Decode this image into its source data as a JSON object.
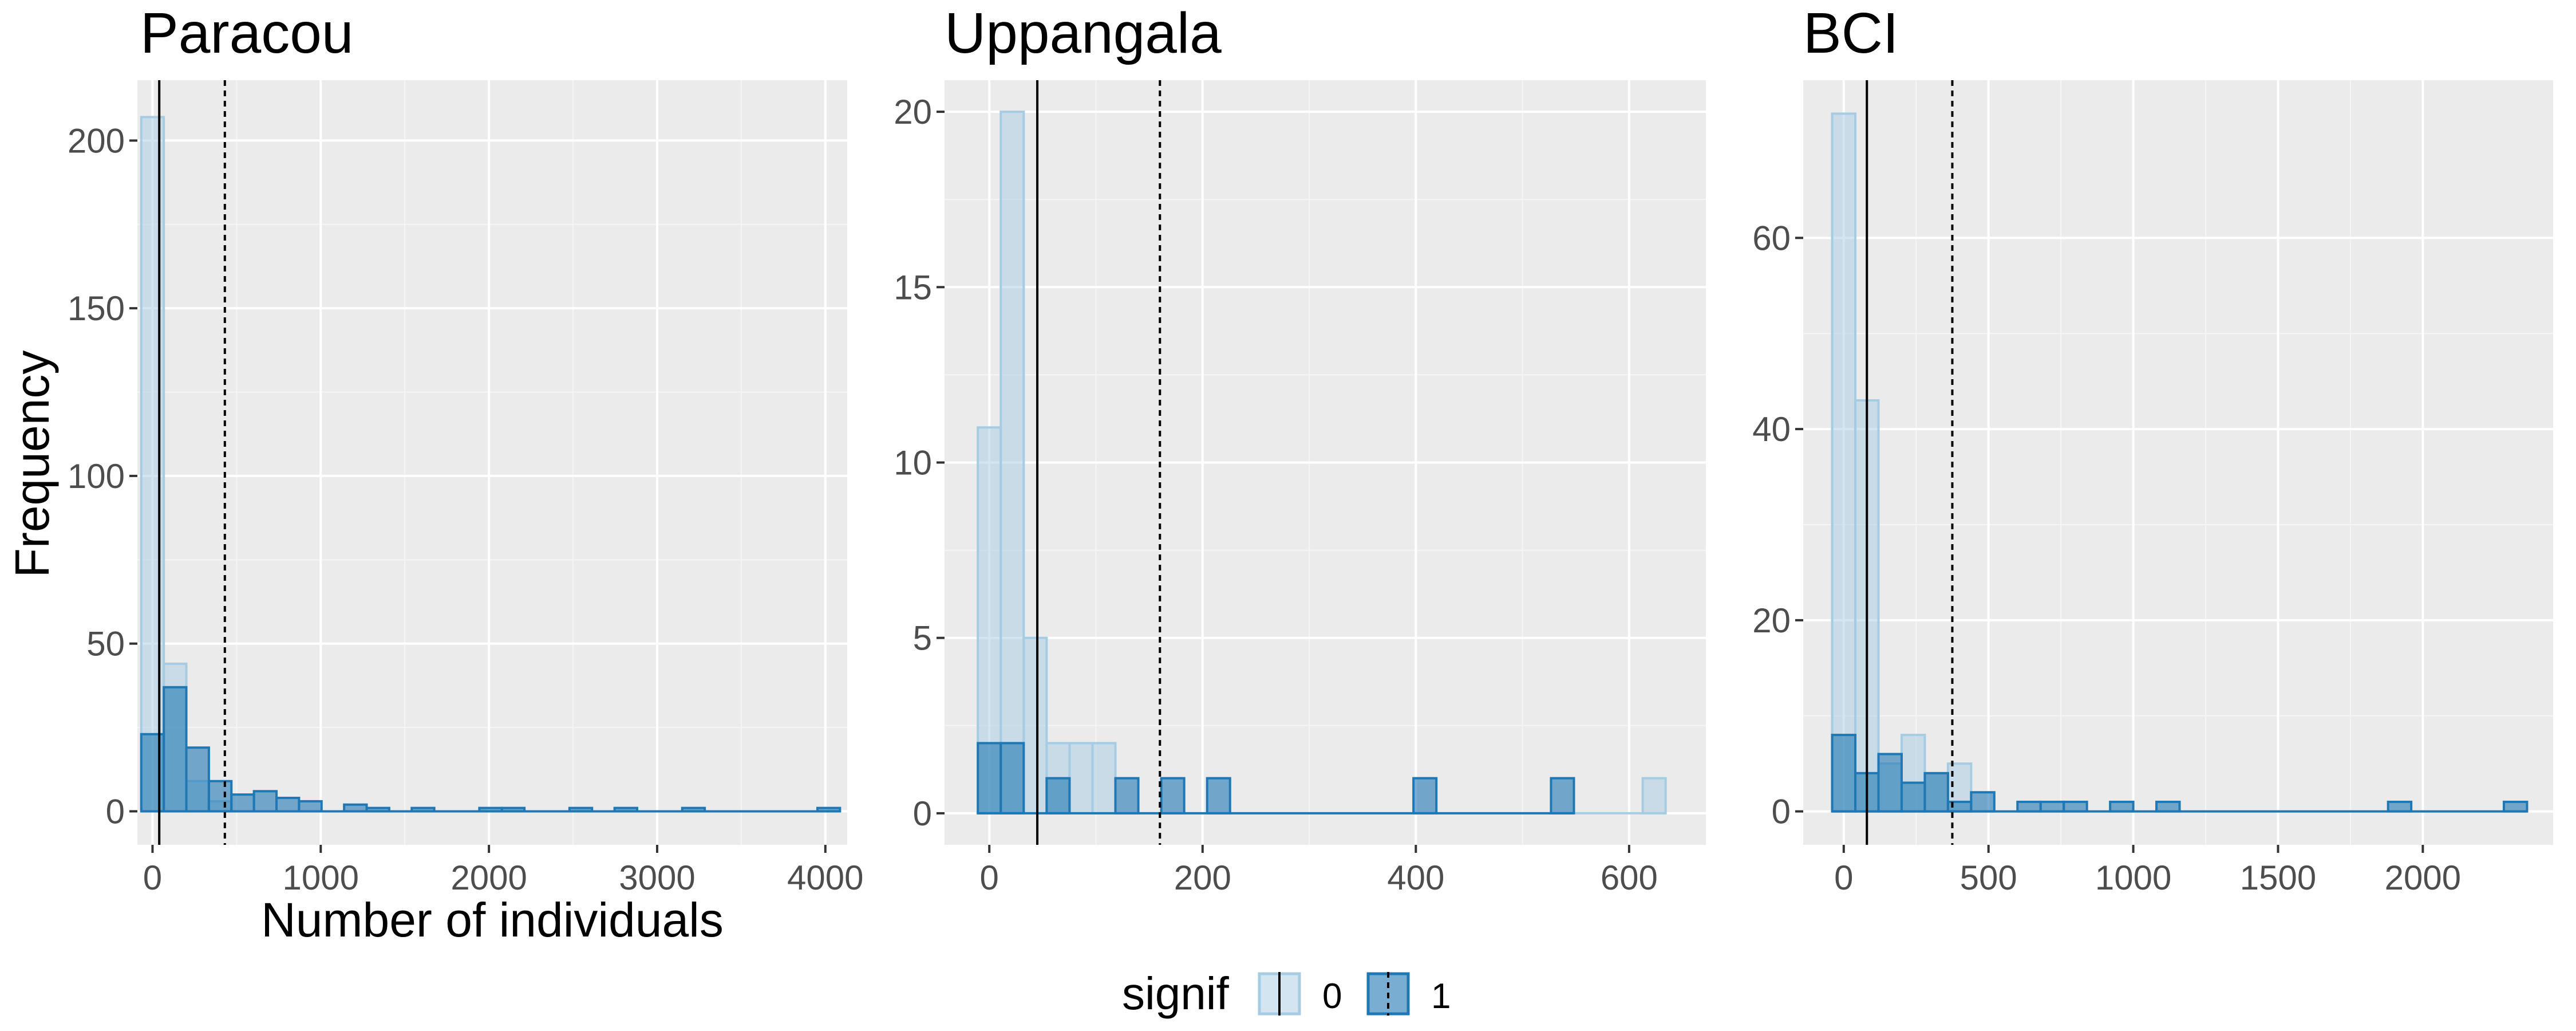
{
  "legend": {
    "title": "signif",
    "items": [
      {
        "label": "0",
        "fill": "#a6cce3",
        "stroke": "#a6cce3",
        "line": "solid"
      },
      {
        "label": "1",
        "fill": "#1f78b4",
        "stroke": "#1f78b4",
        "line": "dashed"
      }
    ]
  },
  "chart_data": [
    {
      "type": "bar",
      "title": "Paracou",
      "xlabel": "Number of individuals",
      "ylabel": "Frequency",
      "xlim": [
        -90,
        4130
      ],
      "ylim": [
        -10,
        218
      ],
      "xticks": [
        0,
        1000,
        2000,
        3000,
        4000
      ],
      "yticks": [
        0,
        50,
        100,
        150,
        200
      ],
      "bin_width": 134,
      "median_line": 40,
      "mean_line": 430,
      "series": [
        {
          "name": "0",
          "bin_centers": [
            0,
            134,
            268,
            402
          ],
          "values": [
            207,
            44,
            9,
            3
          ]
        },
        {
          "name": "1",
          "bin_centers": [
            0,
            134,
            268,
            402,
            536,
            670,
            804,
            938,
            1206,
            1340,
            1608,
            2010,
            2144,
            2546,
            2814,
            3216,
            4020
          ],
          "values": [
            23,
            37,
            19,
            9,
            5,
            6,
            4,
            3,
            2,
            1,
            1,
            1,
            1,
            1,
            1,
            1,
            1
          ]
        }
      ],
      "grid": true
    },
    {
      "type": "bar",
      "title": "Uppangala",
      "xlabel": "",
      "ylabel": "",
      "xlim": [
        -42,
        672
      ],
      "ylim": [
        -0.9,
        20.9
      ],
      "xticks": [
        0,
        200,
        400,
        600
      ],
      "yticks": [
        0,
        5,
        10,
        15,
        20
      ],
      "bin_width": 21.5,
      "median_line": 45,
      "mean_line": 160,
      "series": [
        {
          "name": "0",
          "bin_centers": [
            0,
            21.5,
            43,
            64.5,
            86,
            107.5,
            623.5
          ],
          "values": [
            11,
            20,
            5,
            2,
            2,
            2,
            1
          ]
        },
        {
          "name": "1",
          "bin_centers": [
            0,
            21.5,
            64.5,
            129,
            172,
            215,
            408.5,
            537.5
          ],
          "values": [
            2,
            2,
            1,
            1,
            1,
            1,
            1,
            1
          ]
        }
      ],
      "grid": true
    },
    {
      "type": "bar",
      "title": "BCI",
      "xlabel": "",
      "ylabel": "",
      "xlim": [
        -140,
        2450
      ],
      "ylim": [
        -3.5,
        76.5
      ],
      "xticks": [
        0,
        500,
        1000,
        1500,
        2000
      ],
      "yticks": [
        0,
        20,
        40,
        60
      ],
      "bin_width": 80,
      "median_line": 80,
      "mean_line": 375,
      "series": [
        {
          "name": "0",
          "bin_centers": [
            0,
            80,
            160,
            240,
            320,
            400
          ],
          "values": [
            73,
            43,
            5,
            8,
            4,
            5
          ]
        },
        {
          "name": "1",
          "bin_centers": [
            0,
            80,
            160,
            240,
            320,
            400,
            480,
            640,
            720,
            800,
            960,
            1120,
            1920,
            2320
          ],
          "values": [
            8,
            4,
            6,
            3,
            4,
            1,
            2,
            1,
            1,
            1,
            1,
            1,
            1,
            1
          ]
        }
      ],
      "grid": true
    }
  ]
}
